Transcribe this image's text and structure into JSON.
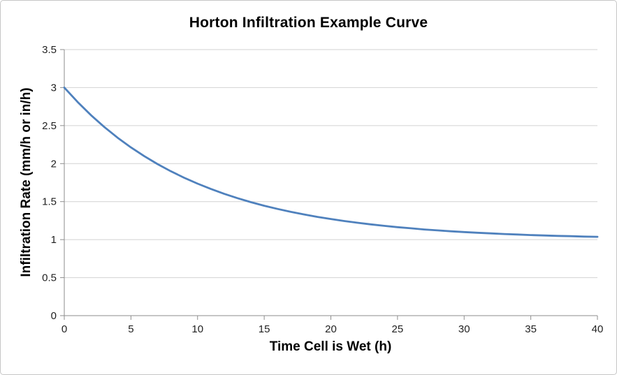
{
  "chart": {
    "title": "Horton Infiltration Example Curve",
    "xlabel": "Time Cell is Wet (h)",
    "ylabel": "Infiltration Rate (mm/h or in/h)"
  },
  "chart_data": {
    "type": "line",
    "title": "Horton Infiltration Example Curve",
    "xlabel": "Time Cell is Wet (h)",
    "ylabel": "Infiltration Rate (mm/h or in/h)",
    "xlim": [
      0,
      40
    ],
    "ylim": [
      0,
      3.5
    ],
    "x_ticks": [
      0,
      5,
      10,
      15,
      20,
      25,
      30,
      35,
      40
    ],
    "x_tick_labels": [
      "0",
      "5",
      "10",
      "15",
      "20",
      "25",
      "30",
      "35",
      "40"
    ],
    "y_ticks": [
      0,
      0.5,
      1,
      1.5,
      2,
      2.5,
      3,
      3.5
    ],
    "y_tick_labels": [
      "0",
      "0.5",
      "1",
      "1.5",
      "2",
      "2.5",
      "3",
      "3.5"
    ],
    "grid": "horizontal-major",
    "legend": "none",
    "horton_fit": {
      "f0": 3.0,
      "fc": 1.0,
      "k_per_h": 0.1
    },
    "x": [
      0,
      1,
      2,
      3,
      4,
      5,
      6,
      7,
      8,
      9,
      10,
      11,
      12,
      13,
      14,
      15,
      16,
      17,
      18,
      19,
      20,
      21,
      22,
      23,
      24,
      25,
      26,
      27,
      28,
      29,
      30,
      31,
      32,
      33,
      34,
      35,
      36,
      37,
      38,
      39,
      40
    ],
    "series": [
      {
        "name": "Infiltration rate",
        "values": [
          3.0,
          2.81,
          2.637,
          2.482,
          2.341,
          2.213,
          2.098,
          1.993,
          1.899,
          1.813,
          1.736,
          1.666,
          1.602,
          1.545,
          1.493,
          1.446,
          1.404,
          1.365,
          1.331,
          1.299,
          1.271,
          1.245,
          1.222,
          1.201,
          1.181,
          1.164,
          1.149,
          1.134,
          1.122,
          1.11,
          1.1,
          1.09,
          1.082,
          1.074,
          1.067,
          1.06,
          1.055,
          1.049,
          1.045,
          1.04,
          1.037
        ]
      }
    ],
    "colors": {
      "line": "#4f81bd",
      "grid": "#d2d2d2",
      "axis": "#8e8e8e",
      "tick_text": "#1f1f1f",
      "title_text": "#000000"
    }
  }
}
